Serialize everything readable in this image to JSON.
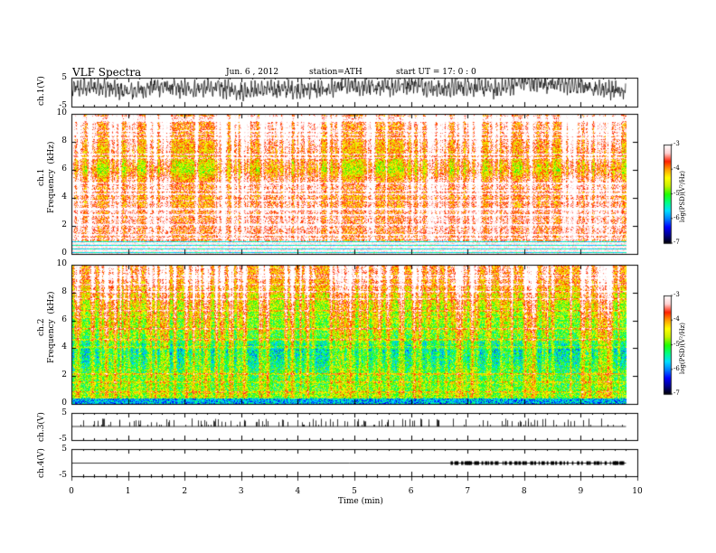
{
  "header": {
    "title": "VLF  Spectra",
    "date": "Jun. 6  , 2012",
    "station": "station=ATH",
    "start": "start  UT  =   17: 0  : 0"
  },
  "colors": {
    "colormap": [
      "#000000",
      "#00008b",
      "#0000ff",
      "#0080ff",
      "#00e0ff",
      "#00ff80",
      "#20ff00",
      "#c8f000",
      "#ffff00",
      "#ffa000",
      "#ff2000",
      "#ffd0d0",
      "#ffffff"
    ],
    "trace": "#000000"
  },
  "chart_data": [
    {
      "type": "line",
      "panel": "ch1-waveform",
      "ylabel": "ch.1(V)",
      "ylim": [
        -5,
        5
      ],
      "yticks": [
        "5",
        "-5"
      ],
      "xlim": [
        0,
        10
      ],
      "series": [
        {
          "x": [
            0,
            0.5,
            1,
            1.5,
            2,
            2.5,
            3,
            3.5,
            4,
            4.5,
            5,
            5.5,
            6,
            6.5,
            7,
            7.5,
            8,
            8.5,
            9,
            9.5,
            9.8
          ],
          "values": [
            1,
            2,
            0,
            2,
            1,
            1.5,
            0.5,
            1,
            1,
            1,
            2,
            1.5,
            3,
            1,
            2,
            1,
            3.5,
            3,
            2,
            1,
            0
          ]
        }
      ]
    },
    {
      "type": "heatmap",
      "panel": "ch1-spectrogram",
      "ylabel": "ch.1\nFrequency  (kHz)",
      "ylim": [
        0,
        10
      ],
      "yticks": [
        "10",
        "8",
        "6",
        "4",
        "2",
        "0"
      ],
      "xlim": [
        0,
        10
      ],
      "data_end_min": 9.8,
      "colorbar": {
        "label": "log(PSD)(V²/Hz)",
        "range": [
          -7,
          -3
        ],
        "ticks": [
          "-3",
          "-4",
          "-5",
          "-6",
          "-7"
        ]
      },
      "mean_log_psd_profile": {
        "freq_khz": [
          0,
          0.5,
          1,
          1.5,
          2,
          3,
          4,
          5,
          6,
          7,
          8,
          9,
          10
        ],
        "log_psd": [
          -3.2,
          -3.4,
          -3.8,
          -3.7,
          -3.6,
          -3.7,
          -4.0,
          -3.7,
          -4.6,
          -4.2,
          -4.0,
          -3.8,
          -3.7
        ]
      }
    },
    {
      "type": "heatmap",
      "panel": "ch2-spectrogram",
      "ylabel": "ch.2\nFrequency  (kHz)",
      "ylim": [
        0,
        10
      ],
      "yticks": [
        "10",
        "8",
        "6",
        "4",
        "2",
        "0"
      ],
      "xlim": [
        0,
        10
      ],
      "data_end_min": 9.8,
      "colorbar": {
        "label": "log(PSD)(V²/Hz)",
        "range": [
          -7,
          -3
        ],
        "ticks": [
          "-3",
          "-4",
          "-5",
          "-6",
          "-7"
        ]
      },
      "mean_log_psd_profile": {
        "freq_khz": [
          0,
          0.5,
          1,
          2,
          3,
          4,
          5,
          6,
          7,
          8,
          9,
          10
        ],
        "log_psd": [
          -5.8,
          -4.8,
          -5.0,
          -5.1,
          -5.4,
          -5.6,
          -5.0,
          -4.9,
          -4.7,
          -4.4,
          -4.0,
          -3.9
        ]
      }
    },
    {
      "type": "line",
      "panel": "ch3-waveform",
      "ylabel": "ch.3(V)",
      "ylim": [
        -5,
        5
      ],
      "yticks": [
        "5",
        "-5"
      ],
      "xlim": [
        0,
        10
      ],
      "series": [
        {
          "baseline": 0,
          "spike_height": 3
        }
      ]
    },
    {
      "type": "line",
      "panel": "ch4-waveform",
      "ylabel": "ch.4(V)",
      "ylim": [
        -5,
        5
      ],
      "yticks": [
        "5",
        "-5"
      ],
      "xlim": [
        0,
        10
      ],
      "xlabel": "Time  (min)",
      "xticks": [
        "0",
        "1",
        "2",
        "3",
        "4",
        "5",
        "6",
        "7",
        "8",
        "9",
        "10"
      ],
      "series": [
        {
          "baseline": 0,
          "burst_start_min": 6.7,
          "burst_end_min": 9.8
        }
      ]
    }
  ]
}
